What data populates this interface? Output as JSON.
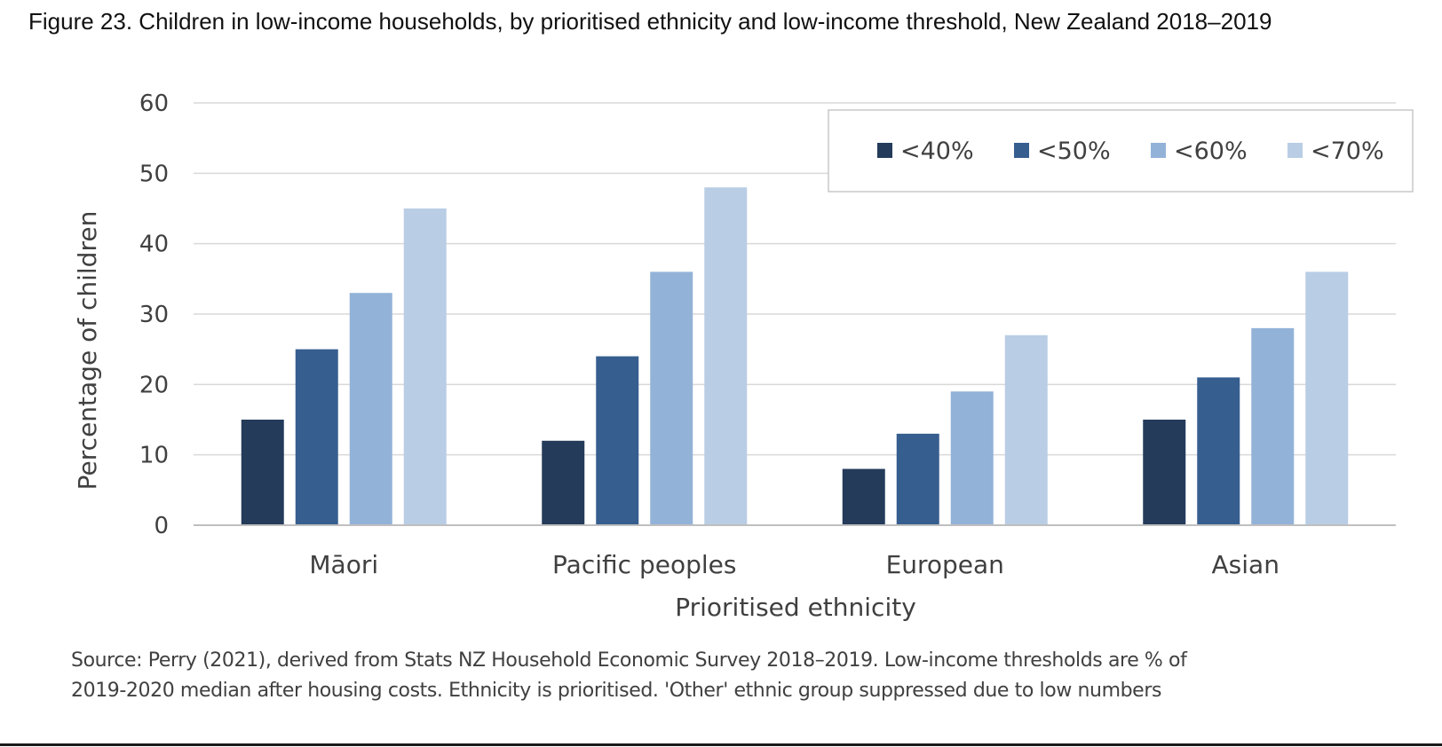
{
  "figure": {
    "title": "Figure 23. Children in low-income households, by prioritised ethnicity and low-income threshold, New Zealand 2018–2019",
    "source": "Source: Perry (2021), derived from Stats NZ Household Economic Survey 2018–2019. Low-income thresholds are % of 2019-2020 median after housing costs. Ethnicity is prioritised. 'Other' ethnic group suppressed due to low numbers"
  },
  "chart_data": {
    "type": "bar",
    "title": "Figure 23. Children in low-income households, by prioritised ethnicity and low-income threshold, New Zealand 2018–2019",
    "xlabel": "Prioritised ethnicity",
    "ylabel": "Percentage of children",
    "ylim": [
      0,
      60
    ],
    "yticks": [
      0,
      10,
      20,
      30,
      40,
      50,
      60
    ],
    "grid": true,
    "legend_position": "top-right",
    "categories": [
      "Māori",
      "Pacific peoples",
      "European",
      "Asian"
    ],
    "series": [
      {
        "name": "<40%",
        "color": "#243b5a",
        "values": [
          15,
          12,
          8,
          15
        ]
      },
      {
        "name": "<50%",
        "color": "#365e8f",
        "values": [
          25,
          24,
          13,
          21
        ]
      },
      {
        "name": "<60%",
        "color": "#93b2d8",
        "values": [
          33,
          36,
          19,
          28
        ]
      },
      {
        "name": "<70%",
        "color": "#b9cde5",
        "values": [
          45,
          48,
          27,
          36
        ]
      }
    ]
  }
}
